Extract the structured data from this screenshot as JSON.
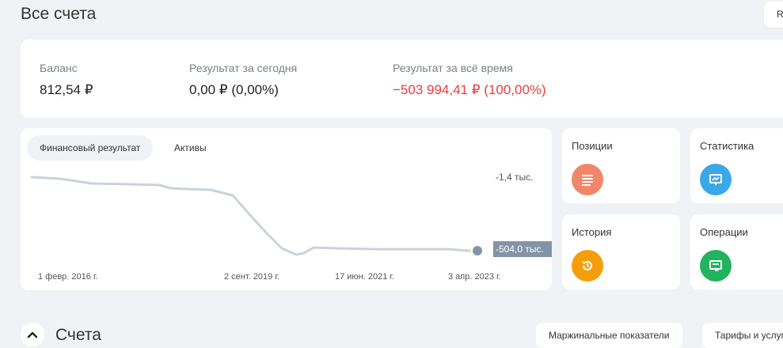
{
  "header": {
    "title": "Все счета",
    "right_button_label": "R"
  },
  "summary": {
    "balance": {
      "label": "Баланс",
      "value": "812,54 ₽"
    },
    "today": {
      "label": "Результат за сегодня",
      "value": "0,00 ₽ (0,00%)"
    },
    "all_time": {
      "label": "Результат за всё время",
      "value": "−503 994,41 ₽ (100,00%)"
    }
  },
  "chart": {
    "tabs": [
      {
        "label": "Финансовый результат",
        "active": true
      },
      {
        "label": "Активы",
        "active": false
      }
    ],
    "top_label": "-1,4 тыс.",
    "end_label": "-504,0 тыс.",
    "x_ticks": [
      "1 февр. 2016 г.",
      "2 сент. 2019 г.",
      "17 июн. 2021 г.",
      "3 апр. 2023 г."
    ]
  },
  "chart_data": {
    "type": "line",
    "series_values_thousands": [
      -1.4,
      -10,
      -20,
      -30,
      -40,
      -45,
      -60,
      -80,
      -120,
      -300,
      -480,
      -504,
      -470,
      -490,
      -495,
      -500,
      -504
    ],
    "x_tick_labels": [
      "1 февр. 2016 г.",
      "2 сент. 2019 г.",
      "17 июн. 2021 г.",
      "3 апр. 2023 г."
    ],
    "y_labels": [
      "-1,4 тыс.",
      "-504,0 тыс."
    ],
    "grid": false,
    "line_color": "#c9d3da"
  },
  "nav": {
    "positions": {
      "label": "Позиции",
      "icon": "list-icon",
      "color": "#f0876a"
    },
    "statistics": {
      "label": "Статистика",
      "icon": "chart-screen-icon",
      "color": "#3aa8e8"
    },
    "history": {
      "label": "История",
      "icon": "history-icon",
      "color": "#f59e0b"
    },
    "operations": {
      "label": "Операции",
      "icon": "operations-icon",
      "color": "#22b35e"
    }
  },
  "accounts": {
    "title": "Счета",
    "margin_button": "Маржинальные показатели",
    "tariffs_button": "Тарифы и услуги"
  }
}
